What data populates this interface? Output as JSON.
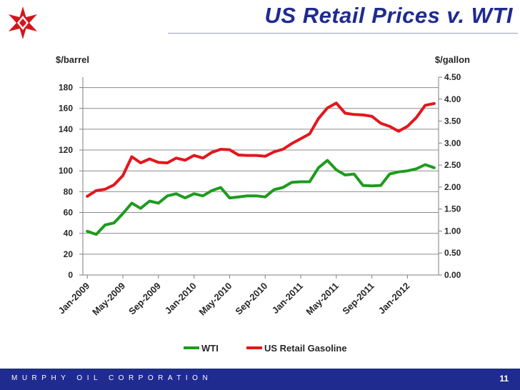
{
  "header": {
    "title": "US Retail Prices v. WTI",
    "logo_icon": "murphy-star-logo-icon"
  },
  "footer": {
    "company": "MURPHY OIL CORPORATION",
    "page_number": "11"
  },
  "colors": {
    "brand_blue": "#1f2b8f",
    "wti_green": "#1e9b1e",
    "gasoline_red": "#e3161d",
    "logo_red": "#d4161c"
  },
  "chart_data": {
    "type": "line",
    "title": "",
    "left_axis_label": "$/barrel",
    "right_axis_label": "$/gallon",
    "left_ylim": [
      0,
      190
    ],
    "right_ylim": [
      0,
      4.5
    ],
    "left_ticks": [
      "0",
      "20",
      "40",
      "60",
      "80",
      "100",
      "120",
      "140",
      "160",
      "180"
    ],
    "right_ticks": [
      "0.00",
      "0.50",
      "1.00",
      "1.50",
      "2.00",
      "2.50",
      "3.00",
      "3.50",
      "4.00",
      "4.50"
    ],
    "x_tick_labels": [
      "Jan-2009",
      "May-2009",
      "Sep-2009",
      "Jan-2010",
      "May-2010",
      "Sep-2010",
      "Jan-2011",
      "May-2011",
      "Sep-2011",
      "Jan-2012"
    ],
    "x": [
      "Jan-2009",
      "Feb-2009",
      "Mar-2009",
      "Apr-2009",
      "May-2009",
      "Jun-2009",
      "Jul-2009",
      "Aug-2009",
      "Sep-2009",
      "Oct-2009",
      "Nov-2009",
      "Dec-2009",
      "Jan-2010",
      "Feb-2010",
      "Mar-2010",
      "Apr-2010",
      "May-2010",
      "Jun-2010",
      "Jul-2010",
      "Aug-2010",
      "Sep-2010",
      "Oct-2010",
      "Nov-2010",
      "Dec-2010",
      "Jan-2011",
      "Feb-2011",
      "Mar-2011",
      "Apr-2011",
      "May-2011",
      "Jun-2011",
      "Jul-2011",
      "Aug-2011",
      "Sep-2011",
      "Oct-2011",
      "Nov-2011",
      "Dec-2011",
      "Jan-2012",
      "Feb-2012",
      "Mar-2012",
      "Apr-2012"
    ],
    "grid": true,
    "legend_position": "bottom",
    "series": [
      {
        "name": "WTI",
        "axis": "left",
        "color": "#1e9b1e",
        "values": [
          42,
          39,
          48,
          50,
          59,
          69,
          64,
          71,
          69,
          76,
          78,
          74,
          78,
          76,
          81,
          84,
          74,
          75,
          76,
          76,
          75,
          82,
          84,
          89,
          89.5,
          89.5,
          103,
          110,
          101,
          96,
          97,
          86,
          85.5,
          86,
          97,
          99,
          100,
          102,
          106,
          103
        ]
      },
      {
        "name": "US Retail Gasoline",
        "axis": "right",
        "color": "#e3161d",
        "values": [
          1.79,
          1.92,
          1.95,
          2.05,
          2.26,
          2.69,
          2.55,
          2.64,
          2.56,
          2.55,
          2.66,
          2.61,
          2.72,
          2.66,
          2.79,
          2.86,
          2.85,
          2.73,
          2.72,
          2.72,
          2.7,
          2.8,
          2.86,
          2.99,
          3.1,
          3.21,
          3.56,
          3.8,
          3.91,
          3.68,
          3.65,
          3.64,
          3.61,
          3.45,
          3.38,
          3.27,
          3.38,
          3.58,
          3.86,
          3.9
        ]
      }
    ]
  }
}
